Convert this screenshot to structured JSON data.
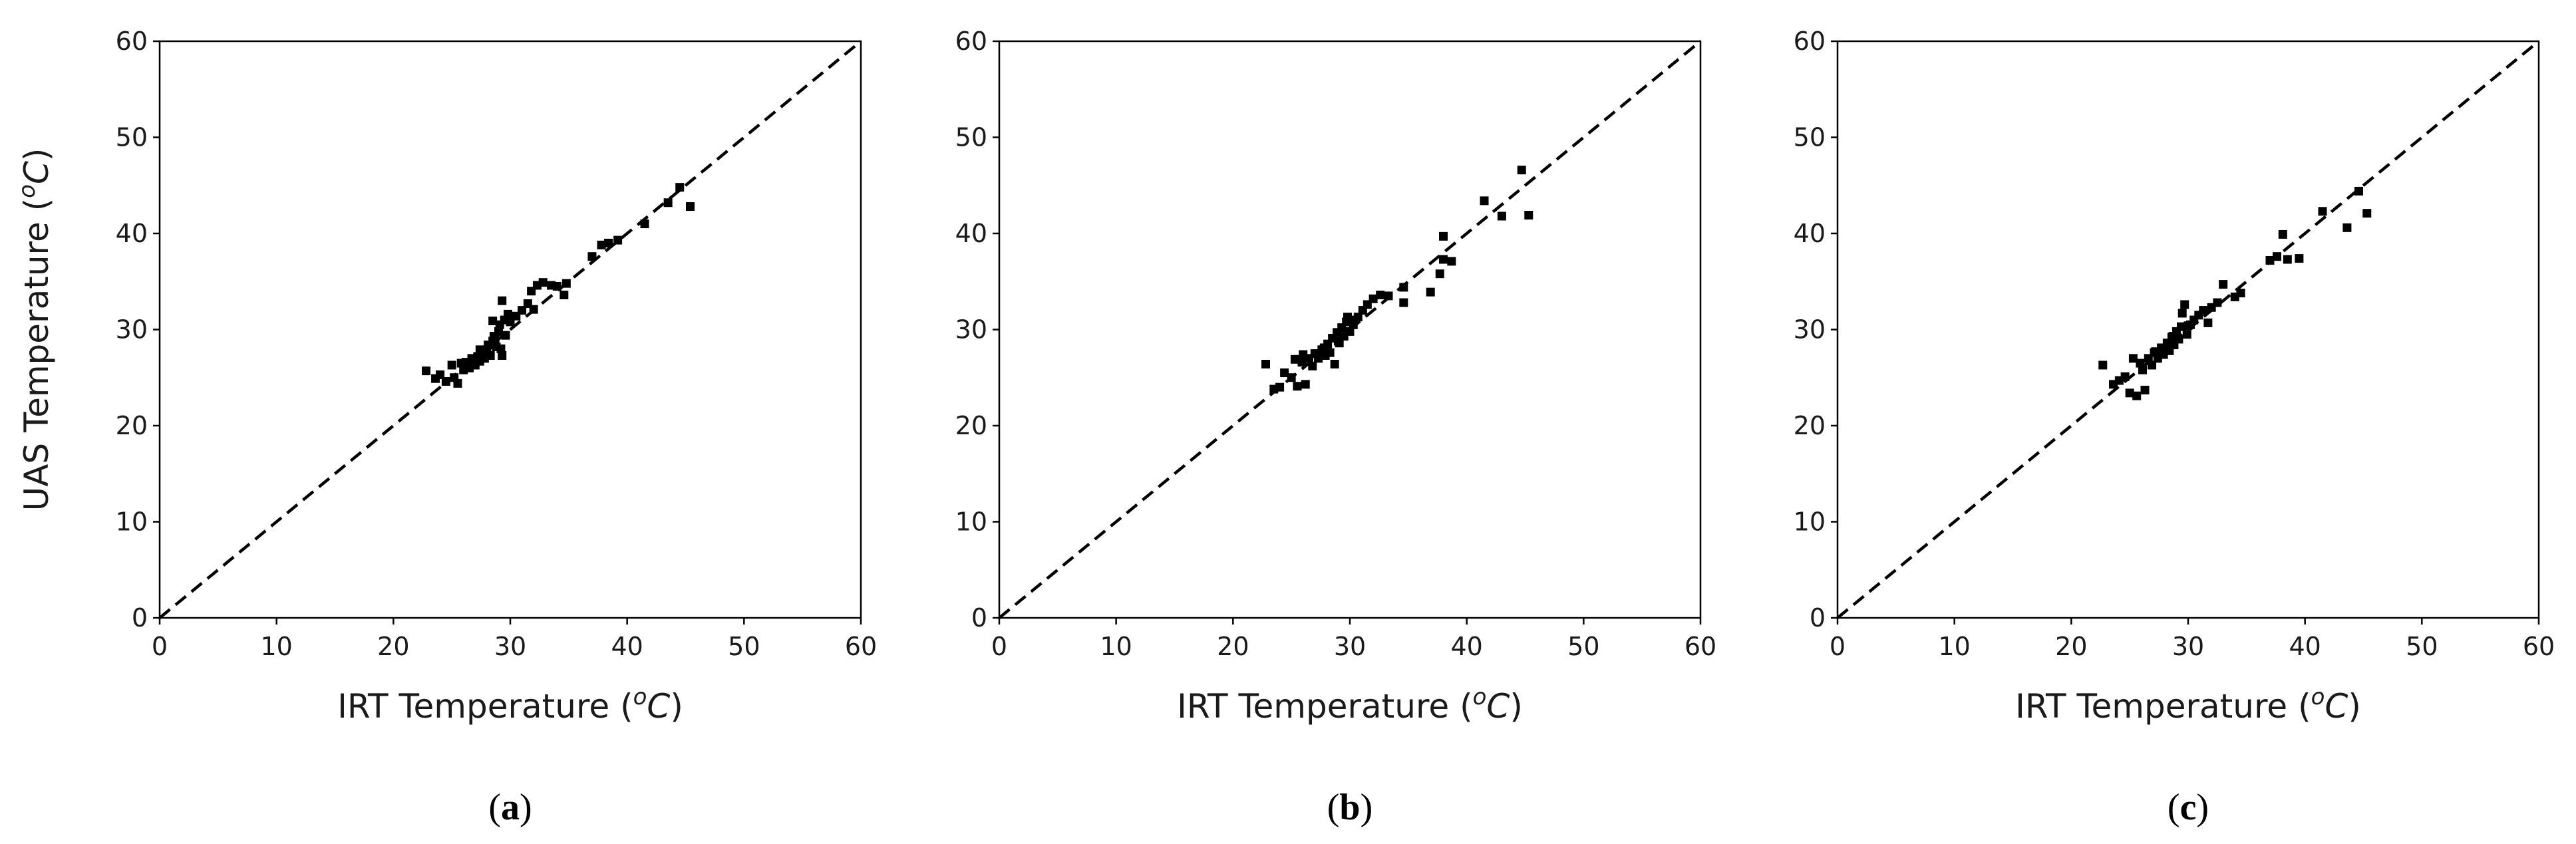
{
  "colors": {
    "points": "#000000",
    "reference_line": "#000000",
    "background": "#ffffff"
  },
  "chart_data": [
    {
      "type": "scatter",
      "panel_label": "a",
      "xlabel": "IRT Temperature",
      "ylabel": "UAS Temperature",
      "unit": "oC",
      "xlim": [
        0,
        60
      ],
      "ylim": [
        0,
        60
      ],
      "xticks": [
        0,
        10,
        20,
        30,
        40,
        50,
        60
      ],
      "yticks": [
        0,
        10,
        20,
        30,
        40,
        50,
        60
      ],
      "grid": false,
      "reference_line": {
        "style": "dashed",
        "from": [
          0,
          0
        ],
        "to": [
          60,
          60
        ]
      },
      "points": [
        [
          22.8,
          25.7
        ],
        [
          23.6,
          24.9
        ],
        [
          24.0,
          25.3
        ],
        [
          24.5,
          24.6
        ],
        [
          25.0,
          26.3
        ],
        [
          25.2,
          25.0
        ],
        [
          25.5,
          24.4
        ],
        [
          25.8,
          26.5
        ],
        [
          26.0,
          25.8
        ],
        [
          26.2,
          26.6
        ],
        [
          26.5,
          26.0
        ],
        [
          26.8,
          26.9
        ],
        [
          27.0,
          26.3
        ],
        [
          27.2,
          27.2
        ],
        [
          27.4,
          26.7
        ],
        [
          27.6,
          27.5
        ],
        [
          27.8,
          27.0
        ],
        [
          28.0,
          27.8
        ],
        [
          28.1,
          28.4
        ],
        [
          28.3,
          27.3
        ],
        [
          28.5,
          28.8
        ],
        [
          28.6,
          29.3
        ],
        [
          28.8,
          28.2
        ],
        [
          29.0,
          29.8
        ],
        [
          29.1,
          30.5
        ],
        [
          29.2,
          28.0
        ],
        [
          29.3,
          27.3
        ],
        [
          29.5,
          31.0
        ],
        [
          29.6,
          29.4
        ],
        [
          29.8,
          31.6
        ],
        [
          30.0,
          30.8
        ],
        [
          30.5,
          31.4
        ],
        [
          31.0,
          32.0
        ],
        [
          31.5,
          32.7
        ],
        [
          31.8,
          34.0
        ],
        [
          32.0,
          32.1
        ],
        [
          32.3,
          34.6
        ],
        [
          32.8,
          34.9
        ],
        [
          33.5,
          34.6
        ],
        [
          34.0,
          34.5
        ],
        [
          34.6,
          33.6
        ],
        [
          34.8,
          34.8
        ],
        [
          29.3,
          33.0
        ],
        [
          28.5,
          30.9
        ],
        [
          37.0,
          37.6
        ],
        [
          37.8,
          38.8
        ],
        [
          38.4,
          39.0
        ],
        [
          39.2,
          39.3
        ],
        [
          41.5,
          41.0
        ],
        [
          43.5,
          43.2
        ],
        [
          44.5,
          44.8
        ],
        [
          45.4,
          42.8
        ],
        [
          26.7,
          27.0
        ],
        [
          27.4,
          27.9
        ],
        [
          28.7,
          29.0
        ]
      ]
    },
    {
      "type": "scatter",
      "panel_label": "b",
      "xlabel": "IRT Temperature",
      "ylabel": "",
      "unit": "oC",
      "xlim": [
        0,
        60
      ],
      "ylim": [
        0,
        60
      ],
      "xticks": [
        0,
        10,
        20,
        30,
        40,
        50,
        60
      ],
      "yticks": [
        0,
        10,
        20,
        30,
        40,
        50,
        60
      ],
      "grid": false,
      "reference_line": {
        "style": "dashed",
        "from": [
          0,
          0
        ],
        "to": [
          60,
          60
        ]
      },
      "points": [
        [
          22.8,
          26.4
        ],
        [
          23.5,
          23.8
        ],
        [
          24.0,
          24.0
        ],
        [
          24.4,
          25.5
        ],
        [
          25.0,
          25.0
        ],
        [
          25.3,
          26.9
        ],
        [
          25.5,
          24.1
        ],
        [
          25.9,
          26.6
        ],
        [
          26.2,
          24.3
        ],
        [
          26.5,
          27.0
        ],
        [
          26.8,
          26.2
        ],
        [
          27.0,
          27.5
        ],
        [
          27.3,
          27.0
        ],
        [
          27.6,
          27.9
        ],
        [
          27.9,
          27.3
        ],
        [
          28.1,
          28.5
        ],
        [
          28.3,
          27.6
        ],
        [
          28.5,
          29.1
        ],
        [
          28.7,
          26.4
        ],
        [
          28.9,
          29.7
        ],
        [
          29.1,
          28.6
        ],
        [
          29.3,
          30.2
        ],
        [
          29.5,
          29.3
        ],
        [
          29.7,
          30.8
        ],
        [
          29.8,
          31.3
        ],
        [
          30.0,
          29.8
        ],
        [
          30.3,
          30.5
        ],
        [
          30.7,
          31.3
        ],
        [
          31.1,
          32.0
        ],
        [
          31.5,
          32.6
        ],
        [
          32.0,
          33.2
        ],
        [
          32.6,
          33.6
        ],
        [
          33.3,
          33.5
        ],
        [
          34.6,
          32.8
        ],
        [
          34.6,
          34.4
        ],
        [
          36.9,
          33.9
        ],
        [
          37.7,
          35.8
        ],
        [
          38.0,
          37.3
        ],
        [
          38.0,
          39.7
        ],
        [
          38.7,
          37.1
        ],
        [
          41.5,
          43.4
        ],
        [
          43.0,
          41.8
        ],
        [
          44.7,
          46.6
        ],
        [
          45.3,
          41.9
        ],
        [
          26.0,
          27.4
        ],
        [
          27.8,
          28.1
        ],
        [
          29.0,
          28.8
        ],
        [
          30.2,
          31.0
        ]
      ]
    },
    {
      "type": "scatter",
      "panel_label": "c",
      "xlabel": "IRT Temperature",
      "ylabel": "",
      "unit": "oC",
      "xlim": [
        0,
        60
      ],
      "ylim": [
        0,
        60
      ],
      "xticks": [
        0,
        10,
        20,
        30,
        40,
        50,
        60
      ],
      "yticks": [
        0,
        10,
        20,
        30,
        40,
        50,
        60
      ],
      "grid": false,
      "reference_line": {
        "style": "dashed",
        "from": [
          0,
          0
        ],
        "to": [
          60,
          60
        ]
      },
      "points": [
        [
          22.7,
          26.3
        ],
        [
          23.6,
          24.3
        ],
        [
          24.1,
          24.7
        ],
        [
          24.6,
          25.1
        ],
        [
          25.0,
          23.4
        ],
        [
          25.3,
          27.0
        ],
        [
          25.6,
          23.1
        ],
        [
          25.9,
          26.5
        ],
        [
          26.1,
          25.8
        ],
        [
          26.3,
          23.7
        ],
        [
          26.6,
          27.0
        ],
        [
          26.9,
          26.3
        ],
        [
          27.1,
          27.6
        ],
        [
          27.4,
          27.0
        ],
        [
          27.7,
          28.1
        ],
        [
          27.9,
          27.4
        ],
        [
          28.2,
          28.6
        ],
        [
          28.4,
          27.8
        ],
        [
          28.6,
          29.2
        ],
        [
          28.8,
          28.4
        ],
        [
          29.0,
          29.8
        ],
        [
          29.2,
          29.0
        ],
        [
          29.4,
          30.3
        ],
        [
          29.5,
          31.7
        ],
        [
          29.7,
          32.6
        ],
        [
          29.9,
          29.5
        ],
        [
          30.2,
          30.5
        ],
        [
          30.5,
          31.0
        ],
        [
          30.9,
          31.5
        ],
        [
          31.3,
          32.0
        ],
        [
          31.7,
          30.7
        ],
        [
          32.0,
          32.3
        ],
        [
          32.5,
          32.8
        ],
        [
          33.0,
          34.7
        ],
        [
          34.0,
          33.4
        ],
        [
          34.5,
          33.8
        ],
        [
          37.0,
          37.2
        ],
        [
          37.6,
          37.6
        ],
        [
          38.1,
          39.9
        ],
        [
          38.5,
          37.3
        ],
        [
          39.5,
          37.4
        ],
        [
          41.5,
          42.3
        ],
        [
          43.6,
          40.6
        ],
        [
          44.6,
          44.4
        ],
        [
          45.3,
          42.1
        ],
        [
          27.2,
          27.7
        ],
        [
          28.7,
          29.3
        ],
        [
          30.0,
          30.4
        ]
      ]
    }
  ]
}
